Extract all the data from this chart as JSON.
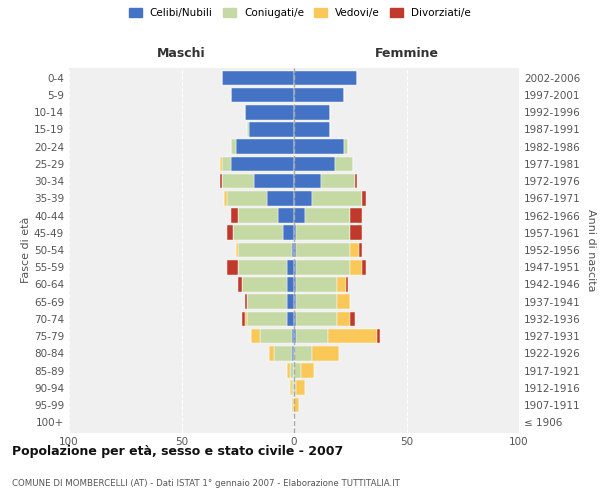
{
  "age_groups": [
    "100+",
    "95-99",
    "90-94",
    "85-89",
    "80-84",
    "75-79",
    "70-74",
    "65-69",
    "60-64",
    "55-59",
    "50-54",
    "45-49",
    "40-44",
    "35-39",
    "30-34",
    "25-29",
    "20-24",
    "15-19",
    "10-14",
    "5-9",
    "0-4"
  ],
  "birth_years": [
    "≤ 1906",
    "1907-1911",
    "1912-1916",
    "1917-1921",
    "1922-1926",
    "1927-1931",
    "1932-1936",
    "1937-1941",
    "1942-1946",
    "1947-1951",
    "1952-1956",
    "1957-1961",
    "1962-1966",
    "1967-1971",
    "1972-1976",
    "1977-1981",
    "1982-1986",
    "1987-1991",
    "1992-1996",
    "1997-2001",
    "2002-2006"
  ],
  "males": {
    "celibi": [
      0,
      0,
      0,
      0,
      1,
      1,
      3,
      3,
      3,
      3,
      1,
      5,
      7,
      12,
      18,
      28,
      26,
      20,
      22,
      28,
      32
    ],
    "coniugati": [
      0,
      0,
      1,
      2,
      8,
      14,
      18,
      18,
      20,
      22,
      24,
      22,
      18,
      18,
      14,
      4,
      2,
      1,
      0,
      0,
      0
    ],
    "vedovi": [
      0,
      1,
      1,
      1,
      2,
      4,
      1,
      0,
      0,
      0,
      1,
      0,
      0,
      1,
      0,
      1,
      0,
      0,
      0,
      0,
      0
    ],
    "divorziati": [
      0,
      0,
      0,
      0,
      0,
      0,
      1,
      1,
      2,
      5,
      0,
      3,
      3,
      0,
      1,
      0,
      0,
      0,
      0,
      0,
      0
    ]
  },
  "females": {
    "nubili": [
      0,
      0,
      0,
      0,
      0,
      1,
      1,
      1,
      1,
      1,
      1,
      1,
      5,
      8,
      12,
      18,
      22,
      16,
      16,
      22,
      28
    ],
    "coniugate": [
      0,
      0,
      1,
      3,
      8,
      14,
      18,
      18,
      18,
      24,
      24,
      24,
      20,
      22,
      15,
      8,
      2,
      0,
      0,
      0,
      0
    ],
    "vedove": [
      0,
      2,
      4,
      6,
      12,
      22,
      6,
      6,
      4,
      5,
      4,
      0,
      0,
      0,
      0,
      0,
      0,
      0,
      0,
      0,
      0
    ],
    "divorziate": [
      0,
      0,
      0,
      0,
      0,
      1,
      2,
      0,
      1,
      2,
      1,
      5,
      5,
      2,
      1,
      0,
      0,
      0,
      0,
      0,
      0
    ]
  },
  "colors": {
    "celibi": "#4472C4",
    "coniugati": "#C5D9A4",
    "vedovi": "#FAC858",
    "divorziati": "#C0392B"
  },
  "legend_labels": [
    "Celibi/Nubili",
    "Coniugati/e",
    "Vedovi/e",
    "Divorziati/e"
  ],
  "title": "Popolazione per età, sesso e stato civile - 2007",
  "subtitle": "COMUNE DI MOMBERCELLI (AT) - Dati ISTAT 1° gennaio 2007 - Elaborazione TUTTITALIA.IT",
  "xlabel_left": "Maschi",
  "xlabel_right": "Femmine",
  "ylabel_left": "Fasce di età",
  "ylabel_right": "Anni di nascita",
  "xlim": 100,
  "background_color": "#ffffff",
  "plot_bg_color": "#f0f0f0",
  "grid_color": "#ffffff",
  "bar_height": 0.85
}
